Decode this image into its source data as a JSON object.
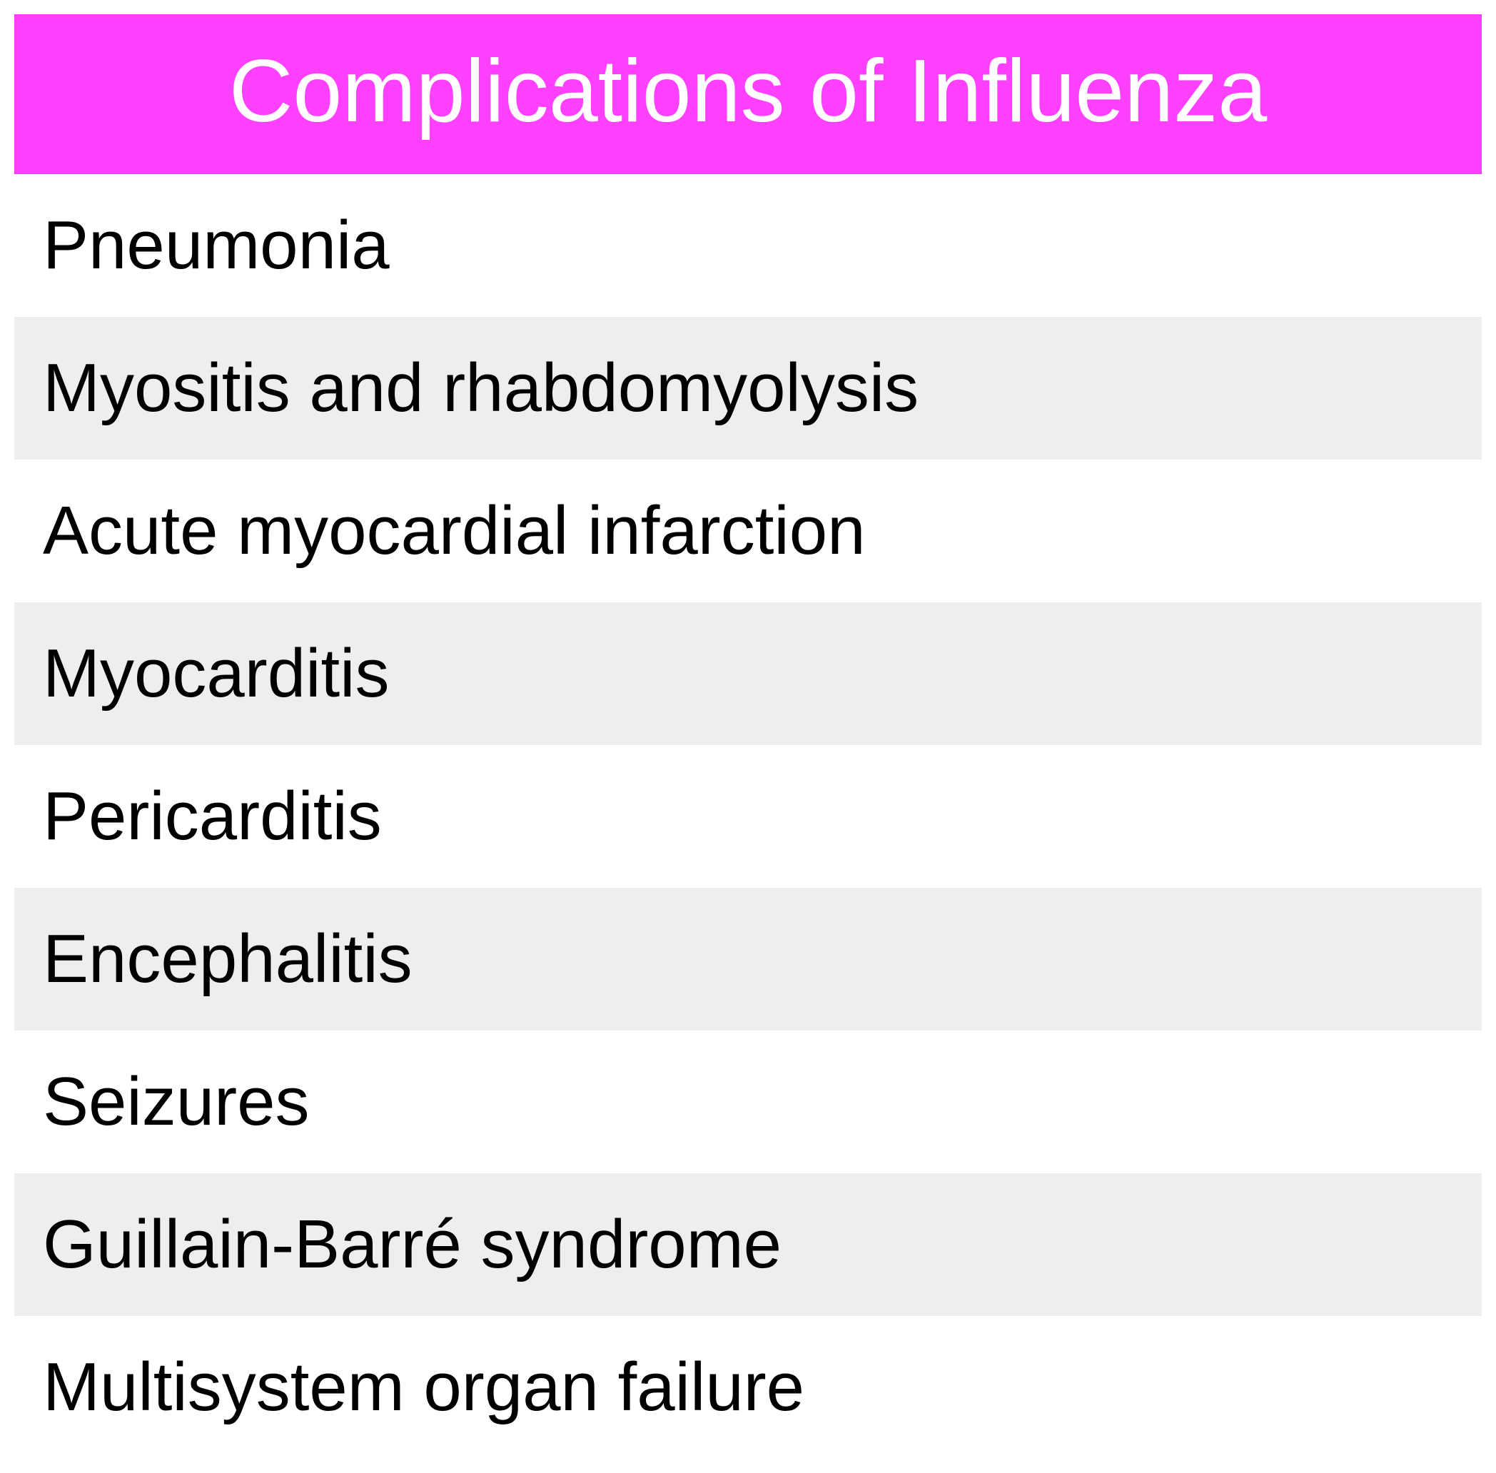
{
  "table": {
    "title": "Complications of Influenza",
    "header_color": "#ff40ff",
    "row_alt_color": "#eeeeee",
    "rows": [
      "Pneumonia",
      "Myositis and rhabdomyolysis",
      "Acute myocardial infarction",
      "Myocarditis",
      "Pericarditis",
      "Encephalitis",
      "Seizures",
      "Guillain-Barré syndrome",
      "Multisystem organ failure"
    ]
  }
}
